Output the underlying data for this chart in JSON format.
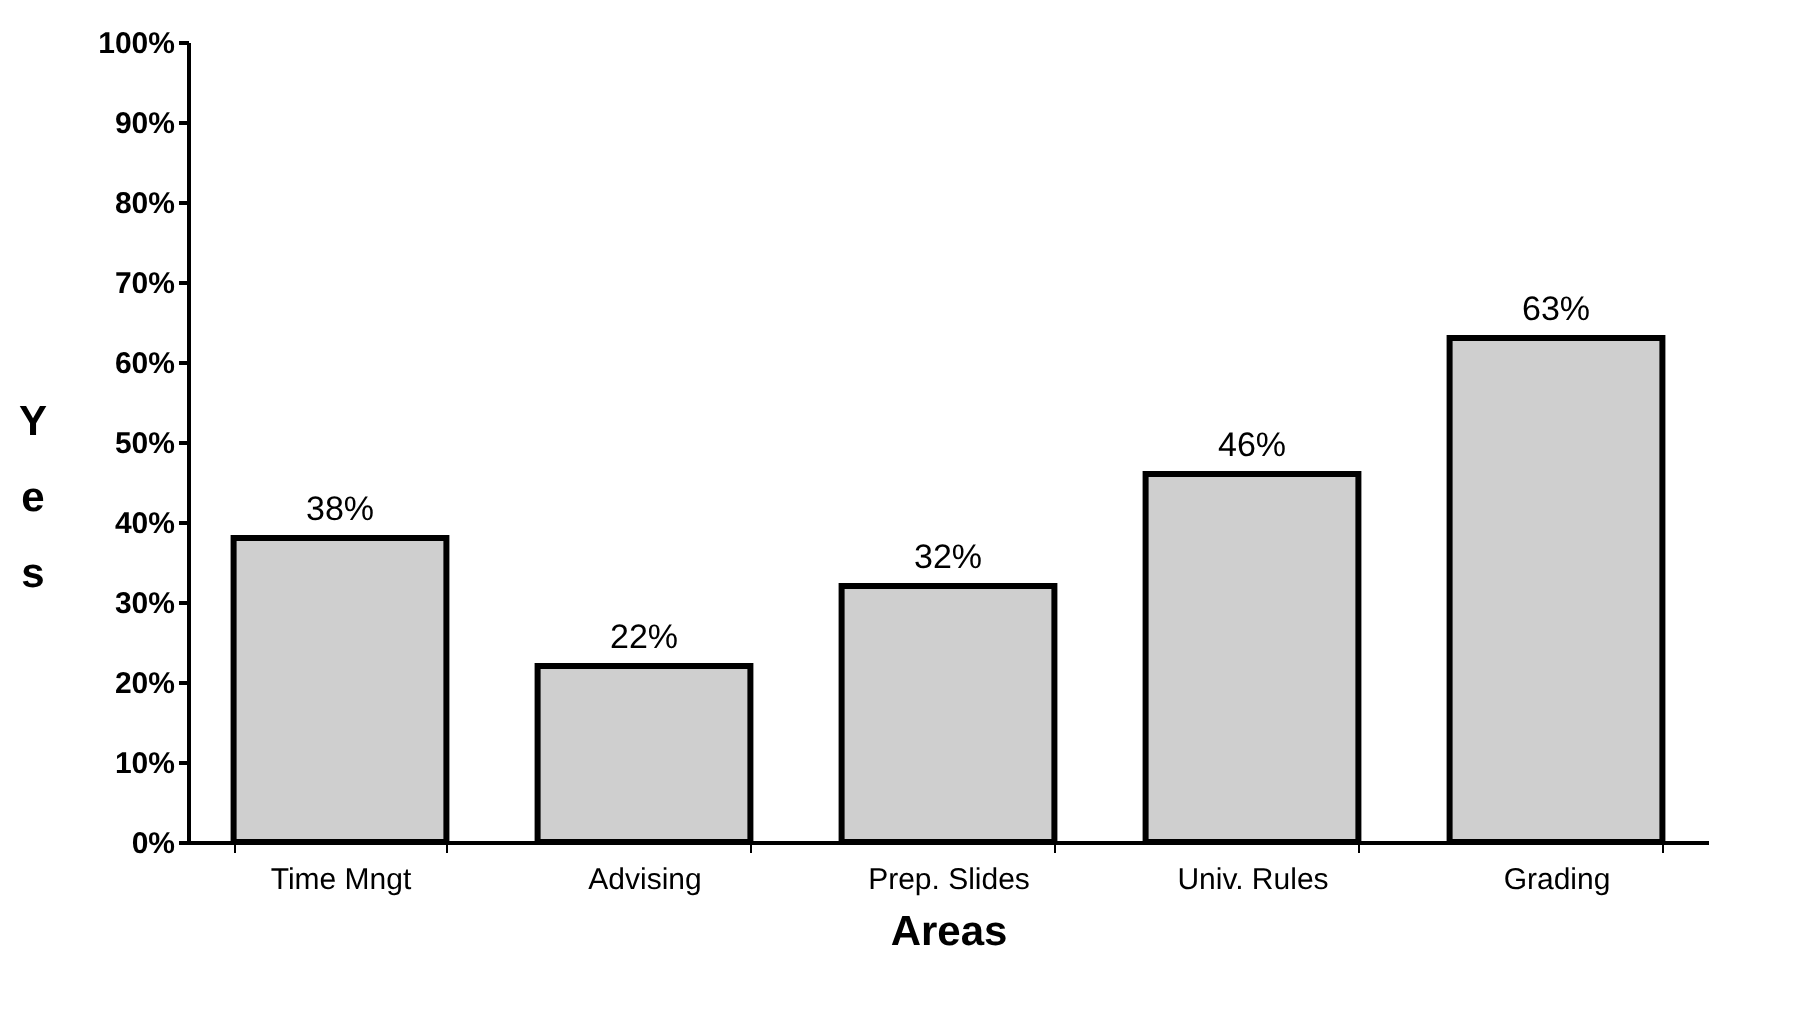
{
  "chart_data": {
    "type": "bar",
    "xlabel": "Areas",
    "ylabel": "Yes",
    "categories": [
      "Time Mngt",
      "Advising",
      "Prep. Slides",
      "Univ. Rules",
      "Grading"
    ],
    "values": [
      38,
      22,
      32,
      46,
      63
    ],
    "value_labels": [
      "38%",
      "22%",
      "32%",
      "46%",
      "63%"
    ],
    "color": "#cfcfcf",
    "ylim": [
      0,
      100
    ],
    "yticks": [
      {
        "value": 0,
        "label": "0%"
      },
      {
        "value": 10,
        "label": "10%"
      },
      {
        "value": 20,
        "label": "20%"
      },
      {
        "value": 30,
        "label": "30%"
      },
      {
        "value": 40,
        "label": "40%"
      },
      {
        "value": 50,
        "label": "50%"
      },
      {
        "value": 60,
        "label": "60%"
      },
      {
        "value": 70,
        "label": "70%"
      },
      {
        "value": 80,
        "label": "80%"
      },
      {
        "value": 90,
        "label": "90%"
      },
      {
        "value": 100,
        "label": "100%"
      }
    ],
    "grid": false
  }
}
